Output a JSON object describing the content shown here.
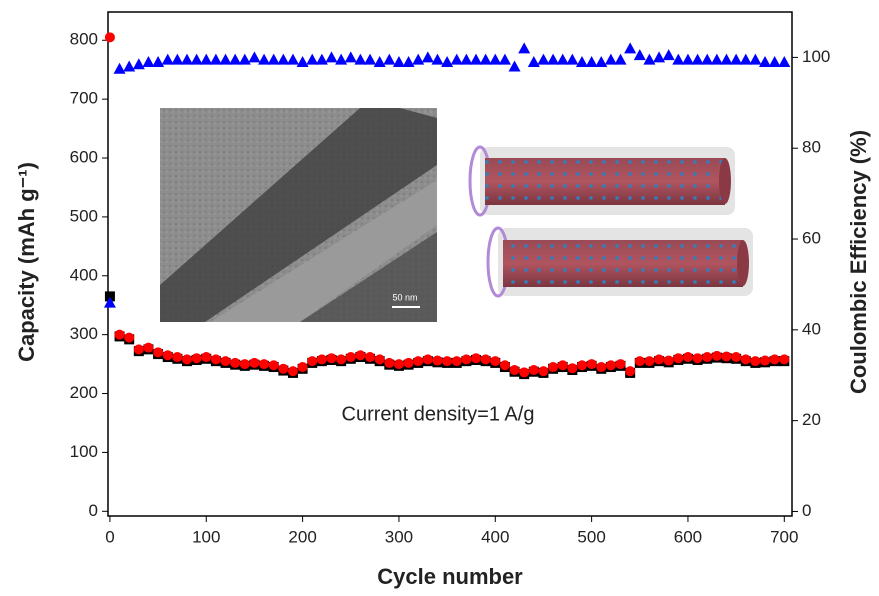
{
  "chart_data": {
    "type": "scatter",
    "xlabel": "Cycle number",
    "ylabel": "Capacity (mAh g⁻¹)",
    "y2label": "Coulombic Efficiency (%)",
    "annotations": [
      "Current density=1 A/g",
      "50 nm"
    ],
    "xlim": [
      -2,
      708
    ],
    "xticks": [
      0,
      100,
      200,
      300,
      400,
      500,
      600,
      700
    ],
    "ylim": [
      -8,
      848
    ],
    "yticks": [
      0,
      100,
      200,
      300,
      400,
      500,
      600,
      700,
      800
    ],
    "y2lim": [
      -1,
      110
    ],
    "y2ticks": [
      0,
      20,
      40,
      60,
      80,
      100
    ],
    "x": [
      0,
      10,
      20,
      30,
      40,
      50,
      60,
      70,
      80,
      90,
      100,
      110,
      120,
      130,
      140,
      150,
      160,
      170,
      180,
      190,
      200,
      210,
      220,
      230,
      240,
      250,
      260,
      270,
      280,
      290,
      300,
      310,
      320,
      330,
      340,
      350,
      360,
      370,
      380,
      390,
      400,
      410,
      420,
      430,
      440,
      450,
      460,
      470,
      480,
      490,
      500,
      510,
      520,
      530,
      540,
      550,
      560,
      570,
      580,
      590,
      600,
      610,
      620,
      630,
      640,
      650,
      660,
      670,
      680,
      690,
      700
    ],
    "series": [
      {
        "color": "#000000",
        "marker": "square",
        "values": [
          365,
          297,
          292,
          272,
          275,
          267,
          262,
          259,
          255,
          257,
          259,
          255,
          252,
          249,
          247,
          249,
          247,
          245,
          239,
          235,
          242,
          252,
          255,
          257,
          255,
          259,
          262,
          259,
          255,
          249,
          247,
          249,
          252,
          255,
          253,
          252,
          252,
          255,
          257,
          255,
          252,
          245,
          237,
          233,
          237,
          235,
          242,
          245,
          240,
          245,
          247,
          242,
          245,
          247,
          235,
          252,
          252,
          255,
          253,
          257,
          259,
          257,
          259,
          261,
          260,
          259,
          255,
          252,
          253,
          255,
          255
        ]
      },
      {
        "color": "#ff0000",
        "marker": "circle",
        "values": [
          805,
          300,
          295,
          275,
          278,
          270,
          265,
          262,
          258,
          260,
          262,
          258,
          255,
          252,
          250,
          252,
          250,
          248,
          242,
          238,
          245,
          255,
          258,
          260,
          258,
          262,
          265,
          262,
          258,
          252,
          250,
          252,
          255,
          258,
          256,
          255,
          255,
          258,
          260,
          258,
          255,
          248,
          240,
          236,
          240,
          238,
          245,
          248,
          243,
          248,
          250,
          245,
          248,
          250,
          238,
          255,
          255,
          258,
          256,
          260,
          262,
          260,
          262,
          264,
          263,
          262,
          258,
          255,
          256,
          258,
          258
        ]
      },
      {
        "color": "#0000ff",
        "marker": "triangle",
        "axis": "y2",
        "values": [
          46,
          97.5,
          98,
          98.5,
          99,
          99,
          99.5,
          99.5,
          99.5,
          99.5,
          99.5,
          99.5,
          99.5,
          99.5,
          99.5,
          100,
          99.5,
          99.5,
          99.5,
          99.5,
          99,
          99.5,
          99.5,
          100,
          99.5,
          100,
          99.5,
          99.5,
          99,
          99.5,
          99,
          99,
          99.5,
          100,
          99.5,
          99,
          99.5,
          99.5,
          99.5,
          99.5,
          99.5,
          99.5,
          98,
          102,
          99,
          99.5,
          99.5,
          99.5,
          99.5,
          99,
          99,
          99,
          99.5,
          99.5,
          102,
          100.5,
          99.5,
          100,
          100.5,
          99.5,
          99.5,
          99.5,
          99.5,
          99.5,
          99.5,
          99.5,
          99.5,
          99.5,
          99,
          99,
          99
        ]
      }
    ]
  }
}
